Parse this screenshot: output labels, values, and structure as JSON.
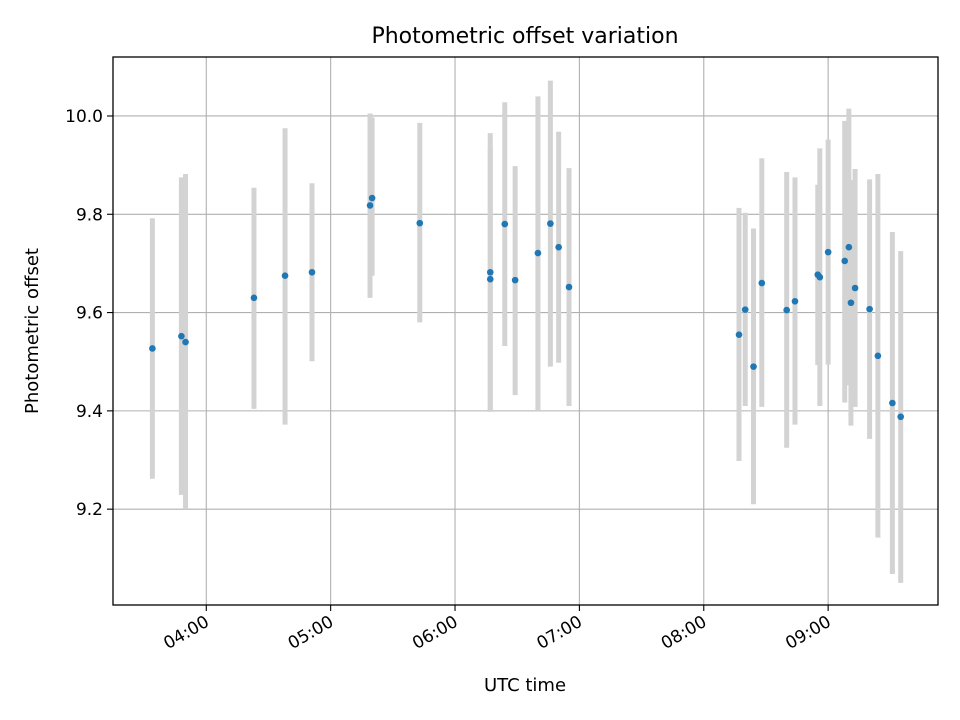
{
  "chart_data": {
    "type": "scatter",
    "title": "Photometric offset variation",
    "xlabel": "UTC time",
    "ylabel": "Photometric offset",
    "x_axis_type": "time",
    "x_date": "",
    "xlim": [
      "03:15",
      "09:53"
    ],
    "ylim": [
      9.005,
      10.12
    ],
    "x_ticks": [
      "04:00",
      "05:00",
      "06:00",
      "07:00",
      "08:00",
      "09:00"
    ],
    "y_ticks": [
      9.2,
      9.4,
      9.6,
      9.8,
      10.0
    ],
    "y_tick_labels": [
      "9.2",
      "9.4",
      "9.6",
      "9.8",
      "10.0"
    ],
    "grid": true,
    "x_tick_rotation": 30,
    "marker_color": "#1f77b4",
    "errorbar_color": "#d3d3d3",
    "series": [
      {
        "points": [
          {
            "x": "03:34",
            "y": 9.527,
            "ylow": 9.262,
            "yhigh": 9.792
          },
          {
            "x": "03:48",
            "y": 9.552,
            "ylow": 9.229,
            "yhigh": 9.875
          },
          {
            "x": "03:50",
            "y": 9.54,
            "ylow": 9.2,
            "yhigh": 9.882
          },
          {
            "x": "04:23",
            "y": 9.63,
            "ylow": 9.404,
            "yhigh": 9.854
          },
          {
            "x": "04:38",
            "y": 9.675,
            "ylow": 9.372,
            "yhigh": 9.975
          },
          {
            "x": "04:51",
            "y": 9.682,
            "ylow": 9.501,
            "yhigh": 9.863
          },
          {
            "x": "05:19",
            "y": 9.818,
            "ylow": 9.63,
            "yhigh": 10.005
          },
          {
            "x": "05:20",
            "y": 9.833,
            "ylow": 9.675,
            "yhigh": 9.997
          },
          {
            "x": "05:43",
            "y": 9.782,
            "ylow": 9.58,
            "yhigh": 9.986
          },
          {
            "x": "06:17",
            "y": 9.682,
            "ylow": 9.4,
            "yhigh": 9.965
          },
          {
            "x": "06:17",
            "y": 9.668,
            "ylow": 9.398,
            "yhigh": 9.938
          },
          {
            "x": "06:24",
            "y": 9.78,
            "ylow": 9.532,
            "yhigh": 10.028
          },
          {
            "x": "06:29",
            "y": 9.666,
            "ylow": 9.432,
            "yhigh": 9.898
          },
          {
            "x": "06:40",
            "y": 9.721,
            "ylow": 9.4,
            "yhigh": 10.04
          },
          {
            "x": "06:46",
            "y": 9.781,
            "ylow": 9.49,
            "yhigh": 10.072
          },
          {
            "x": "06:50",
            "y": 9.733,
            "ylow": 9.498,
            "yhigh": 9.968
          },
          {
            "x": "06:55",
            "y": 9.652,
            "ylow": 9.41,
            "yhigh": 9.894
          },
          {
            "x": "08:17",
            "y": 9.555,
            "ylow": 9.298,
            "yhigh": 9.813
          },
          {
            "x": "08:20",
            "y": 9.606,
            "ylow": 9.41,
            "yhigh": 9.803
          },
          {
            "x": "08:24",
            "y": 9.49,
            "ylow": 9.21,
            "yhigh": 9.771
          },
          {
            "x": "08:28",
            "y": 9.66,
            "ylow": 9.408,
            "yhigh": 9.914
          },
          {
            "x": "08:40",
            "y": 9.605,
            "ylow": 9.325,
            "yhigh": 9.886
          },
          {
            "x": "08:44",
            "y": 9.623,
            "ylow": 9.372,
            "yhigh": 9.875
          },
          {
            "x": "08:55",
            "y": 9.677,
            "ylow": 9.493,
            "yhigh": 9.86
          },
          {
            "x": "08:56",
            "y": 9.672,
            "ylow": 9.41,
            "yhigh": 9.934
          },
          {
            "x": "09:00",
            "y": 9.723,
            "ylow": 9.494,
            "yhigh": 9.952
          },
          {
            "x": "09:08",
            "y": 9.705,
            "ylow": 9.417,
            "yhigh": 9.99
          },
          {
            "x": "09:10",
            "y": 9.733,
            "ylow": 9.452,
            "yhigh": 10.015
          },
          {
            "x": "09:11",
            "y": 9.62,
            "ylow": 9.37,
            "yhigh": 9.87
          },
          {
            "x": "09:13",
            "y": 9.65,
            "ylow": 9.408,
            "yhigh": 9.892
          },
          {
            "x": "09:20",
            "y": 9.607,
            "ylow": 9.343,
            "yhigh": 9.871
          },
          {
            "x": "09:24",
            "y": 9.512,
            "ylow": 9.142,
            "yhigh": 9.882
          },
          {
            "x": "09:31",
            "y": 9.416,
            "ylow": 9.068,
            "yhigh": 9.764
          },
          {
            "x": "09:35",
            "y": 9.388,
            "ylow": 9.05,
            "yhigh": 9.725
          }
        ]
      }
    ]
  }
}
